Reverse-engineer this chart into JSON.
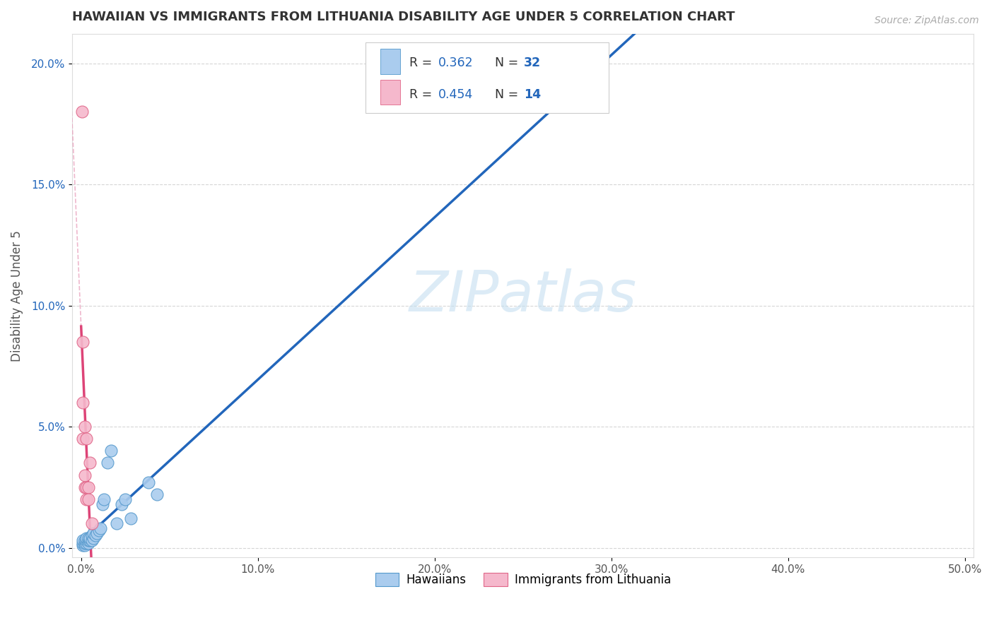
{
  "title": "HAWAIIAN VS IMMIGRANTS FROM LITHUANIA DISABILITY AGE UNDER 5 CORRELATION CHART",
  "source": "Source: ZipAtlas.com",
  "ylabel": "Disability Age Under 5",
  "xlim": [
    -0.005,
    0.505
  ],
  "ylim": [
    -0.004,
    0.212
  ],
  "xticks": [
    0.0,
    0.1,
    0.2,
    0.3,
    0.4,
    0.5
  ],
  "xticklabels": [
    "0.0%",
    "10.0%",
    "20.0%",
    "30.0%",
    "40.0%",
    "50.0%"
  ],
  "yticks": [
    0.0,
    0.05,
    0.1,
    0.15,
    0.2
  ],
  "yticklabels": [
    "0.0%",
    "5.0%",
    "10.0%",
    "15.0%",
    "20.0%"
  ],
  "hawaiian_face": "#aaccee",
  "hawaiian_edge": "#5599cc",
  "lithuania_face": "#f5b8cc",
  "lithuania_edge": "#e06688",
  "trend_blue": "#2266bb",
  "trend_pink": "#dd4477",
  "dashed_pink": "#e89ab8",
  "background": "#ffffff",
  "grid_color": "#cccccc",
  "ytick_color": "#2266bb",
  "xtick_color": "#555555",
  "title_color": "#333333",
  "source_color": "#aaaaaa",
  "ylabel_color": "#555555",
  "watermark_color": "#c5dff0",
  "legend_R_color": "#333333",
  "legend_val_color": "#2266bb",
  "legend_N_color": "#333333",
  "legend_box_edge": "#cccccc",
  "hawaiian_x": [
    0.001,
    0.001,
    0.001,
    0.002,
    0.002,
    0.002,
    0.003,
    0.003,
    0.003,
    0.004,
    0.004,
    0.004,
    0.005,
    0.005,
    0.006,
    0.006,
    0.007,
    0.007,
    0.008,
    0.009,
    0.01,
    0.011,
    0.012,
    0.013,
    0.015,
    0.017,
    0.02,
    0.023,
    0.025,
    0.028,
    0.038,
    0.043
  ],
  "hawaiian_y": [
    0.001,
    0.002,
    0.003,
    0.001,
    0.002,
    0.003,
    0.002,
    0.003,
    0.004,
    0.002,
    0.003,
    0.004,
    0.003,
    0.004,
    0.003,
    0.005,
    0.004,
    0.006,
    0.005,
    0.006,
    0.007,
    0.008,
    0.018,
    0.02,
    0.035,
    0.04,
    0.01,
    0.018,
    0.02,
    0.012,
    0.027,
    0.022
  ],
  "lithuania_x": [
    0.0005,
    0.001,
    0.001,
    0.001,
    0.002,
    0.002,
    0.002,
    0.003,
    0.003,
    0.003,
    0.004,
    0.004,
    0.005,
    0.006
  ],
  "lithuania_y": [
    0.18,
    0.085,
    0.06,
    0.045,
    0.05,
    0.03,
    0.025,
    0.045,
    0.025,
    0.02,
    0.025,
    0.02,
    0.035,
    0.01
  ]
}
